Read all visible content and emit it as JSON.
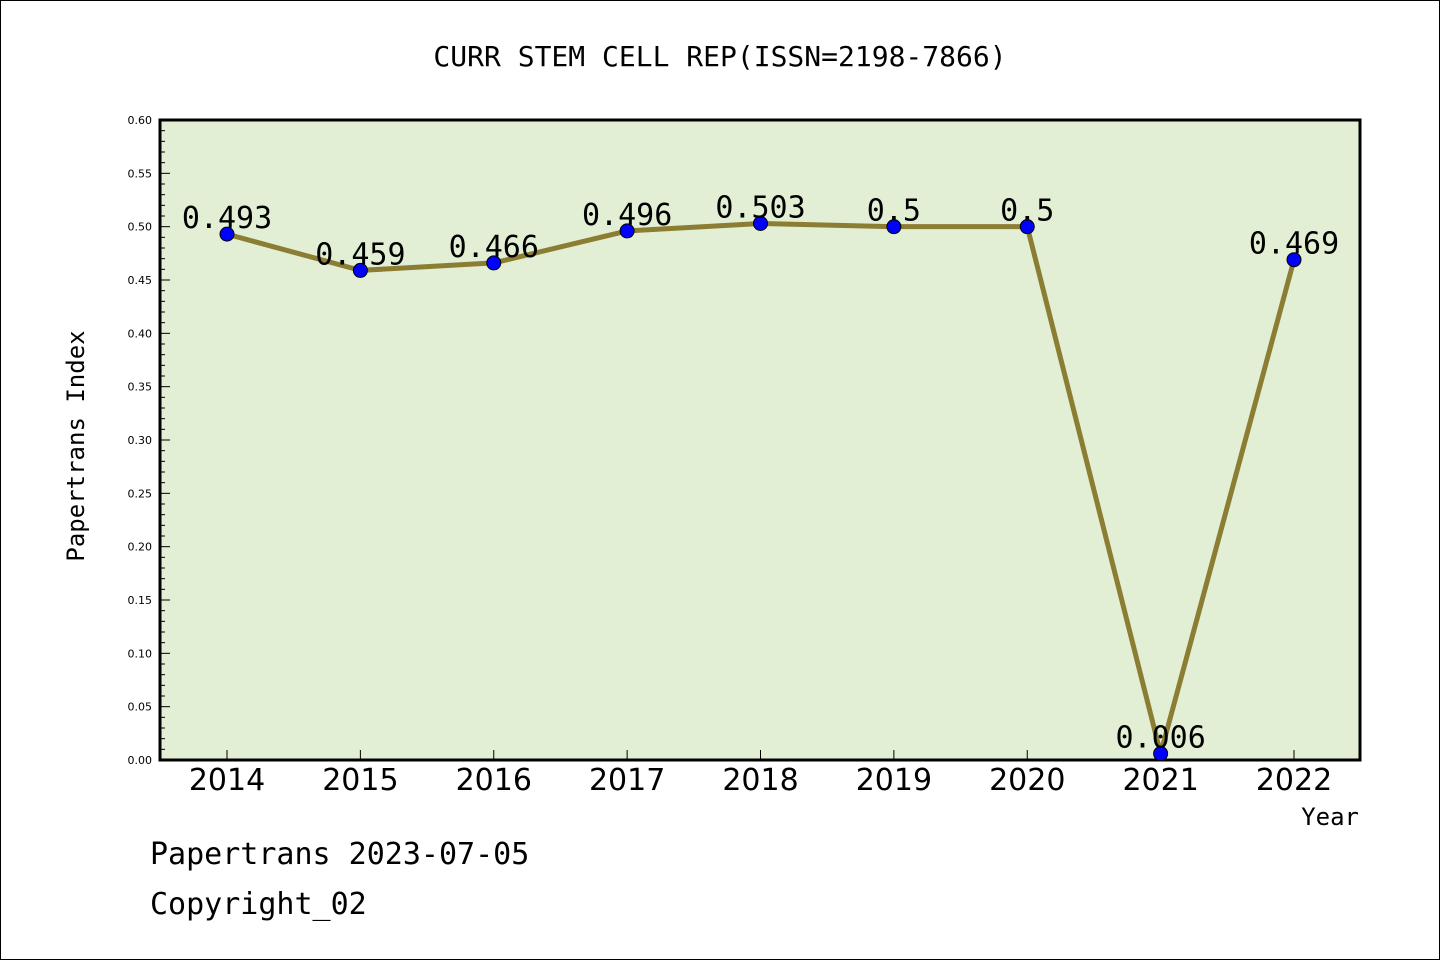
{
  "chart_data": {
    "type": "line",
    "title": "CURR STEM CELL REP(ISSN=2198-7866)",
    "xlabel": "Year",
    "ylabel": "Papertrans Index",
    "categories": [
      "2014",
      "2015",
      "2016",
      "2017",
      "2018",
      "2019",
      "2020",
      "2021",
      "2022"
    ],
    "series": [
      {
        "values": [
          0.493,
          0.459,
          0.466,
          0.496,
          0.503,
          0.5,
          0.5,
          0.006,
          0.469
        ],
        "labels": [
          "0.493",
          "0.459",
          "0.466",
          "0.496",
          "0.503",
          "0.5",
          "0.5",
          "0.006",
          "0.469"
        ]
      }
    ],
    "ylim": [
      0,
      0.6
    ],
    "yticks": [
      "0.00",
      "0.05",
      "0.10",
      "0.15",
      "0.20",
      "0.25",
      "0.30",
      "0.35",
      "0.40",
      "0.45",
      "0.50",
      "0.55",
      "0.60"
    ],
    "grid": false,
    "legend": "none"
  },
  "footer": {
    "line1": "Papertrans 2023-07-05",
    "line2": "Copyright_02"
  },
  "colors": {
    "plot_background": "#e2efd5",
    "line": "#8b7d32",
    "marker": "#0000ff",
    "axis": "#000000"
  }
}
